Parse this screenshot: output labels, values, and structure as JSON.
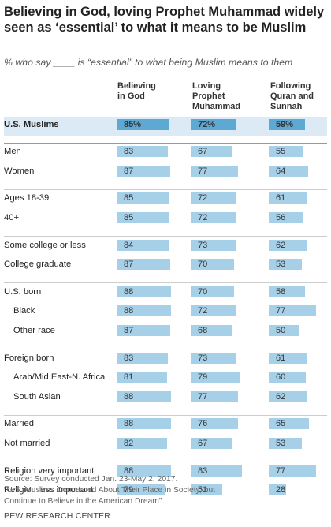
{
  "header": {
    "title": "Believing in God, loving Prophet Muhammad widely seen as ‘essential’ to what it means to be Muslim",
    "subtitle": "% who say ____ is “essential” to what being Muslim means to them"
  },
  "footer": {
    "source": "Source: Survey conducted Jan. 23-May 2, 2017.",
    "note": "“U.S. Muslims Concerned About Their Place in Society, but Continue to Believe in the American Dream”",
    "brand": "PEW RESEARCH CENTER"
  },
  "colors": {
    "highlight_bar": "#5ea8d4",
    "bar": "#a6cfe8",
    "highlight_row": "#dbeaf4"
  },
  "chart_data": {
    "type": "bar",
    "orientation": "horizontal",
    "title": "Believing in God, loving Prophet Muhammad widely seen as ‘essential’ to what it means to be Muslim",
    "subtitle": "% who say ____ is “essential” to what being Muslim means to them",
    "xlim": [
      0,
      100
    ],
    "columns": [
      {
        "name": "Believing in God",
        "header": "Believing\nin God"
      },
      {
        "name": "Loving Prophet Muhammad",
        "header": "Loving\nProphet\nMuhammad"
      },
      {
        "name": "Following Quran and Sunnah",
        "header": "Following\nQuran and\nSunnah"
      }
    ],
    "groups": [
      {
        "rows": [
          {
            "label": "U.S. Muslims",
            "values": [
              85,
              72,
              59
            ],
            "display": [
              "85%",
              "72%",
              "59%"
            ],
            "highlight": true,
            "indent": false
          }
        ]
      },
      {
        "rows": [
          {
            "label": "Men",
            "values": [
              83,
              67,
              55
            ],
            "indent": false
          },
          {
            "label": "Women",
            "values": [
              87,
              77,
              64
            ],
            "indent": false
          }
        ]
      },
      {
        "rows": [
          {
            "label": "Ages 18-39",
            "values": [
              85,
              72,
              61
            ],
            "indent": false
          },
          {
            "label": "40+",
            "values": [
              85,
              72,
              56
            ],
            "indent": false
          }
        ]
      },
      {
        "rows": [
          {
            "label": "Some college or less",
            "values": [
              84,
              73,
              62
            ],
            "indent": false
          },
          {
            "label": "College graduate",
            "values": [
              87,
              70,
              53
            ],
            "indent": false
          }
        ]
      },
      {
        "rows": [
          {
            "label": "U.S. born",
            "values": [
              88,
              70,
              58
            ],
            "indent": false
          },
          {
            "label": "Black",
            "values": [
              88,
              72,
              77
            ],
            "indent": true
          },
          {
            "label": "Other race",
            "values": [
              87,
              68,
              50
            ],
            "indent": true
          }
        ]
      },
      {
        "rows": [
          {
            "label": "Foreign born",
            "values": [
              83,
              73,
              61
            ],
            "indent": false
          },
          {
            "label": "Arab/Mid East-N. Africa",
            "values": [
              81,
              79,
              60
            ],
            "indent": true
          },
          {
            "label": "South Asian",
            "values": [
              88,
              77,
              62
            ],
            "indent": true
          }
        ]
      },
      {
        "rows": [
          {
            "label": "Married",
            "values": [
              88,
              76,
              65
            ],
            "indent": false
          },
          {
            "label": "Not married",
            "values": [
              82,
              67,
              53
            ],
            "indent": false
          }
        ]
      },
      {
        "rows": [
          {
            "label": "Religion very important",
            "values": [
              88,
              83,
              77
            ],
            "indent": false
          },
          {
            "label": "Religion less important",
            "values": [
              79,
              51,
              28
            ],
            "indent": false
          }
        ]
      }
    ]
  }
}
